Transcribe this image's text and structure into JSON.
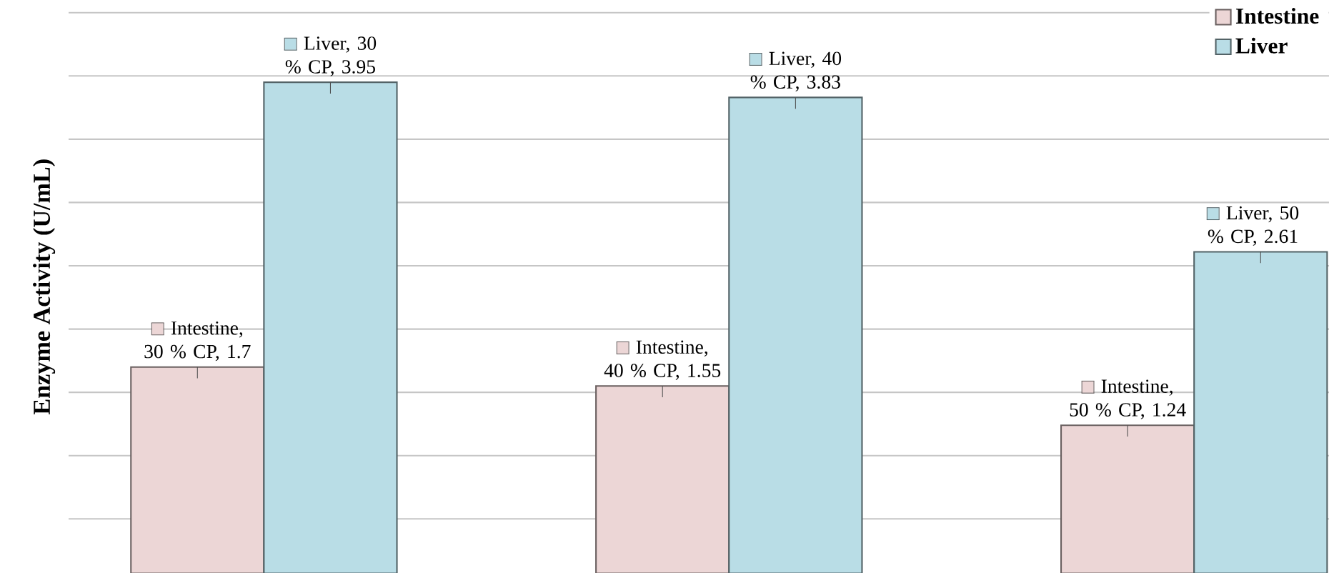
{
  "chart_data": {
    "type": "bar",
    "ylabel": "Enzyme Activity (U/mL)",
    "categories": [
      null,
      null,
      null
    ],
    "series": [
      {
        "name": "Intestine",
        "color": "#ecd6d6",
        "values": [
          1.7,
          1.55,
          1.24
        ],
        "value_labels": [
          "Intestine, 30 % CP, 1.7",
          "Intestine, 40 % CP, 1.55",
          "Intestine, 50 % CP, 1.24"
        ]
      },
      {
        "name": "Liver",
        "color": "#b9dde6",
        "values": [
          3.95,
          3.83,
          2.61
        ],
        "value_labels": [
          "Liver, 30 % CP, 3.95",
          "Liver, 40 % CP, 3.83",
          "Liver, 50 % CP, 2.61"
        ]
      }
    ],
    "ylim": [
      0.07,
      4.6
    ],
    "yticks": [
      {
        "value": 0.5,
        "label": null
      },
      {
        "value": 1,
        "label": null
      },
      {
        "value": 1.5,
        "label": null
      },
      {
        "value": 2,
        "label": null
      },
      {
        "value": 2.5,
        "label": null
      },
      {
        "value": 3,
        "label": null
      },
      {
        "value": 3.5,
        "label": null
      },
      {
        "value": 4,
        "label": null
      },
      {
        "value": 4.5,
        "label": null
      }
    ],
    "grid": "y",
    "legend": "top right"
  }
}
